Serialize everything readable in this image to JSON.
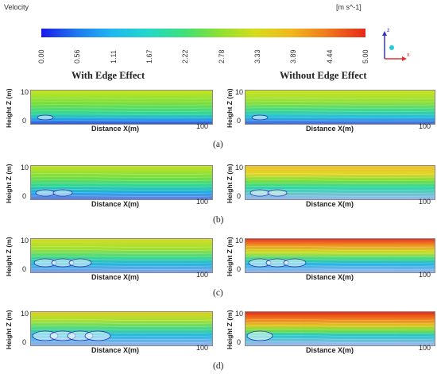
{
  "legend": {
    "title": "Velocity",
    "unit": "[m s^-1]",
    "ticks": [
      "0.00",
      "0.56",
      "1.11",
      "1.67",
      "2.22",
      "2.78",
      "3.33",
      "3.89",
      "4.44",
      "5.00"
    ]
  },
  "columns": {
    "left": "With Edge Effect",
    "right": "Without Edge Effect"
  },
  "axes": {
    "z_label": "Height Z (m)",
    "x_label": "Distance X(m)",
    "x_max": "100",
    "z_max": "10",
    "zero": "0"
  },
  "axis_indicator": {
    "z": "z",
    "x": "x"
  },
  "captions": [
    "(a)",
    "(b)",
    "(c)",
    "(d)"
  ],
  "colors": {
    "low": "#1a1ae6",
    "mid": "#22d8c8",
    "green": "#3ee07a",
    "yellow": "#d6dc1c",
    "high": "#e62a1a"
  }
}
